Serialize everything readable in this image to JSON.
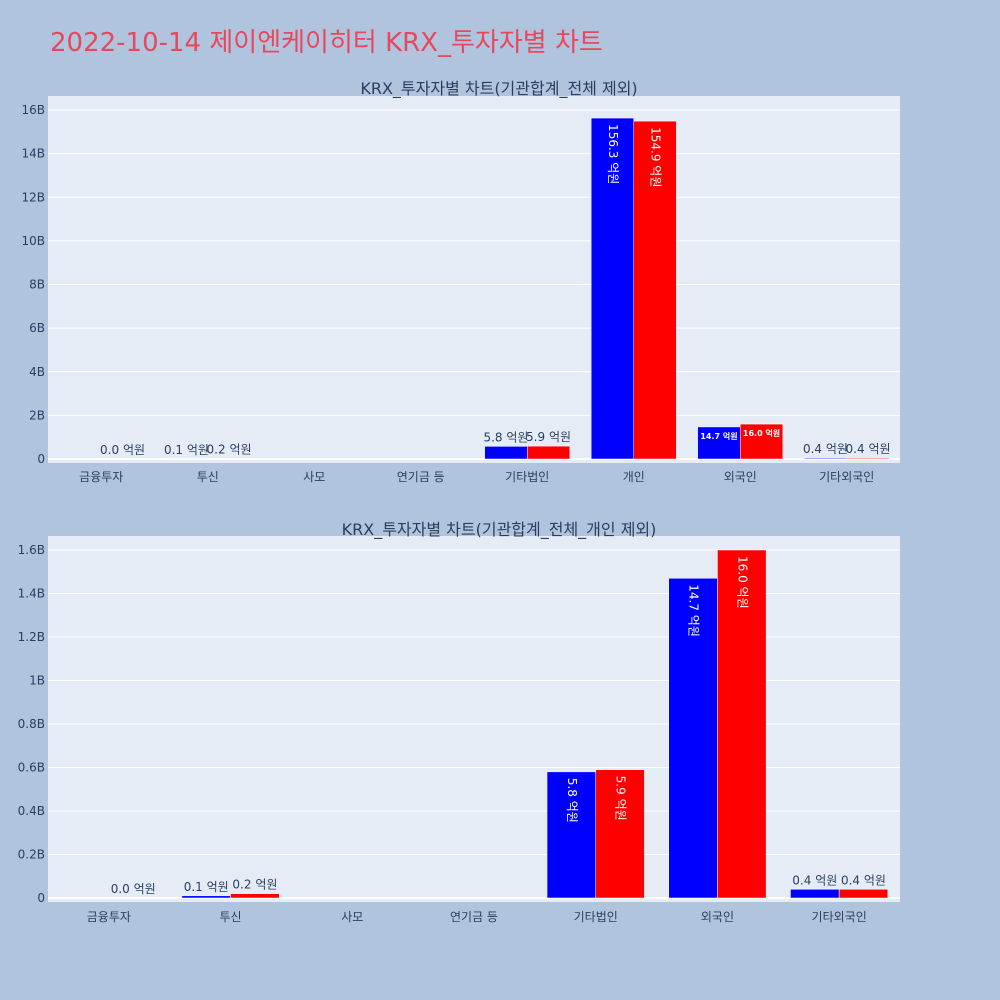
{
  "page": {
    "title": "2022-10-14 제이엔케이히터 KRX_투자자별 차트",
    "title_color": "#e8485e",
    "background": "#b0c4de",
    "plot_background": "#e5ecf6"
  },
  "chart_data": [
    {
      "type": "bar",
      "title": "KRX_투자자별 차트(기관합계_전체 제외)",
      "categories": [
        "금융투자",
        "투신",
        "사모",
        "연기금 등",
        "기타법인",
        "개인",
        "외국인",
        "기타외국인"
      ],
      "series": [
        {
          "color": "#0000ff",
          "values": [
            0,
            10000000,
            0,
            0,
            580000000,
            15630000000,
            1470000000,
            40000000
          ]
        },
        {
          "color": "#ff0000",
          "values": [
            0,
            20000000,
            0,
            0,
            590000000,
            15490000000,
            1600000000,
            40000000
          ]
        }
      ],
      "labels": [
        [
          "",
          "0.1 억원",
          "",
          "",
          "5.8 억원",
          "156.3 억원",
          "14.7 억원",
          "0.4 억원"
        ],
        [
          "0.0 억원",
          "0.2 억원",
          "",
          "",
          "5.9 억원",
          "154.9 억원",
          "16.0 억원",
          "0.4 억원"
        ]
      ],
      "ylim": [
        0,
        16500000000
      ],
      "yticks": [
        0,
        2000000000,
        4000000000,
        6000000000,
        8000000000,
        10000000000,
        12000000000,
        14000000000,
        16000000000
      ],
      "yticklabels": [
        "0",
        "2B",
        "4B",
        "6B",
        "8B",
        "10B",
        "12B",
        "14B",
        "16B"
      ],
      "xlabel": "",
      "ylabel": "",
      "grid": true
    },
    {
      "type": "bar",
      "title": "KRX_투자자별 차트(기관합계_전체_개인 제외)",
      "categories": [
        "금융투자",
        "투신",
        "사모",
        "연기금 등",
        "기타법인",
        "외국인",
        "기타외국인"
      ],
      "series": [
        {
          "color": "#0000ff",
          "values": [
            0,
            10000000,
            0,
            0,
            580000000,
            1470000000,
            40000000
          ]
        },
        {
          "color": "#ff0000",
          "values": [
            0,
            20000000,
            0,
            0,
            590000000,
            1600000000,
            40000000
          ]
        }
      ],
      "labels": [
        [
          "",
          "0.1 억원",
          "",
          "",
          "5.8 억원",
          "14.7 억원",
          "0.4 억원"
        ],
        [
          "0.0 억원",
          "0.2 억원",
          "",
          "",
          "5.9 억원",
          "16.0 억원",
          "0.4 억원"
        ]
      ],
      "ylim": [
        0,
        1600000000
      ],
      "yticks": [
        0,
        200000000,
        400000000,
        600000000,
        800000000,
        1000000000,
        1200000000,
        1400000000,
        1600000000
      ],
      "yticklabels": [
        "0",
        "0.2B",
        "0.4B",
        "0.6B",
        "0.8B",
        "1B",
        "1.2B",
        "1.4B",
        "1.6B"
      ],
      "xlabel": "",
      "ylabel": "",
      "grid": true
    }
  ]
}
